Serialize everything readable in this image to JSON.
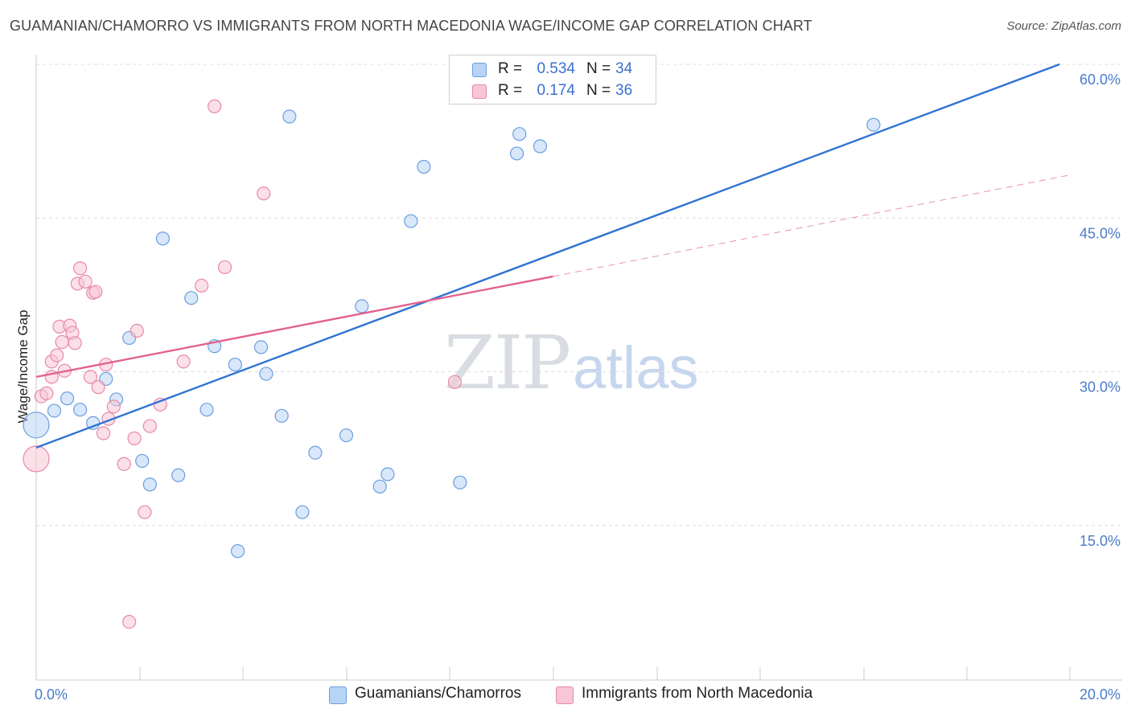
{
  "header": {
    "title": "GUAMANIAN/CHAMORRO VS IMMIGRANTS FROM NORTH MACEDONIA WAGE/INCOME GAP CORRELATION CHART",
    "source": "Source: ZipAtlas.com"
  },
  "watermark": {
    "zip": "ZIP",
    "atlas": "atlas"
  },
  "colors": {
    "blue_fill": "#b8d4f5",
    "blue_stroke": "#6b9ee0",
    "blue_line": "#2f73d3",
    "pink_fill": "#f8c6d6",
    "pink_stroke": "#e889a8",
    "pink_line": "#e2628e",
    "tick_text": "#4a7cc9",
    "grid": "#dcdcdc"
  },
  "legend": {
    "series": [
      {
        "r_label": "R =",
        "r_value": "0.534",
        "n_label": "N =",
        "n_value": "34"
      },
      {
        "r_label": "R =",
        "r_value": "0.174",
        "n_label": "N =",
        "n_value": "36"
      }
    ]
  },
  "bottom_legend": [
    "Guamanians/Chamorros",
    "Immigrants from North Macedonia"
  ],
  "chart_data": {
    "type": "scatter",
    "title": "GUAMANIAN/CHAMORRO VS IMMIGRANTS FROM NORTH MACEDONIA WAGE/INCOME GAP CORRELATION CHART",
    "xlabel": "",
    "ylabel": "Wage/Income Gap",
    "xlim": [
      0,
      20
    ],
    "ylim": [
      0,
      60
    ],
    "x_tick_labels": [
      "0.0%",
      "20.0%"
    ],
    "y_ticks": [
      15,
      30,
      45,
      60
    ],
    "y_tick_labels": [
      "15.0%",
      "30.0%",
      "45.0%",
      "60.0%"
    ],
    "grid": true,
    "series": [
      {
        "name": "Guamanians/Chamorros",
        "color": "#6b9ee0",
        "r": 0.534,
        "n": 34,
        "points": [
          [
            0.0,
            24.8,
            "large"
          ],
          [
            0.35,
            26.2
          ],
          [
            0.6,
            27.4
          ],
          [
            0.85,
            26.3
          ],
          [
            1.1,
            25.0
          ],
          [
            1.35,
            29.3
          ],
          [
            1.55,
            27.3
          ],
          [
            1.8,
            33.3
          ],
          [
            2.05,
            21.3
          ],
          [
            2.2,
            19.0
          ],
          [
            2.45,
            43.0
          ],
          [
            2.75,
            19.9
          ],
          [
            3.0,
            37.2
          ],
          [
            3.3,
            26.3
          ],
          [
            3.45,
            32.5
          ],
          [
            3.85,
            30.7
          ],
          [
            3.9,
            12.5
          ],
          [
            4.35,
            32.4
          ],
          [
            4.45,
            29.8
          ],
          [
            4.75,
            25.7
          ],
          [
            4.9,
            54.9
          ],
          [
            5.15,
            16.3
          ],
          [
            5.4,
            22.1
          ],
          [
            6.0,
            23.8
          ],
          [
            6.3,
            36.4
          ],
          [
            6.65,
            18.8
          ],
          [
            6.8,
            20.0
          ],
          [
            7.25,
            44.7
          ],
          [
            7.5,
            50.0
          ],
          [
            8.2,
            19.2
          ],
          [
            9.3,
            51.3
          ],
          [
            9.35,
            53.2
          ],
          [
            9.75,
            52.0
          ],
          [
            16.2,
            54.1
          ]
        ],
        "trend": {
          "x": [
            0,
            19.8
          ],
          "y": [
            22.6,
            60.0
          ]
        }
      },
      {
        "name": "Immigrants from North Macedonia",
        "color": "#e889a8",
        "r": 0.174,
        "n": 36,
        "points": [
          [
            0.0,
            21.5,
            "large"
          ],
          [
            0.1,
            27.6
          ],
          [
            0.2,
            27.9
          ],
          [
            0.3,
            29.5
          ],
          [
            0.3,
            31.0
          ],
          [
            0.4,
            31.6
          ],
          [
            0.45,
            34.4
          ],
          [
            0.5,
            32.9
          ],
          [
            0.55,
            30.1
          ],
          [
            0.65,
            34.5
          ],
          [
            0.7,
            33.8
          ],
          [
            0.75,
            32.8
          ],
          [
            0.8,
            38.6
          ],
          [
            0.85,
            40.1
          ],
          [
            0.95,
            38.8
          ],
          [
            1.05,
            29.5
          ],
          [
            1.1,
            37.7
          ],
          [
            1.15,
            37.8
          ],
          [
            1.2,
            28.5
          ],
          [
            1.3,
            24.0
          ],
          [
            1.35,
            30.7
          ],
          [
            1.4,
            25.4
          ],
          [
            1.5,
            26.6
          ],
          [
            1.7,
            21.0
          ],
          [
            1.8,
            5.6
          ],
          [
            1.9,
            23.5
          ],
          [
            1.95,
            34.0
          ],
          [
            2.1,
            16.3
          ],
          [
            2.2,
            24.7
          ],
          [
            2.4,
            26.8
          ],
          [
            2.85,
            31.0
          ],
          [
            3.2,
            38.4
          ],
          [
            3.45,
            55.9
          ],
          [
            3.65,
            40.2
          ],
          [
            4.4,
            47.4
          ],
          [
            8.1,
            29.0
          ]
        ],
        "trend": {
          "x": [
            0,
            10.0
          ],
          "y": [
            29.5,
            39.3
          ]
        },
        "trend_extension": {
          "x": [
            10.0,
            20.0
          ],
          "y": [
            39.3,
            49.2
          ]
        }
      }
    ]
  }
}
